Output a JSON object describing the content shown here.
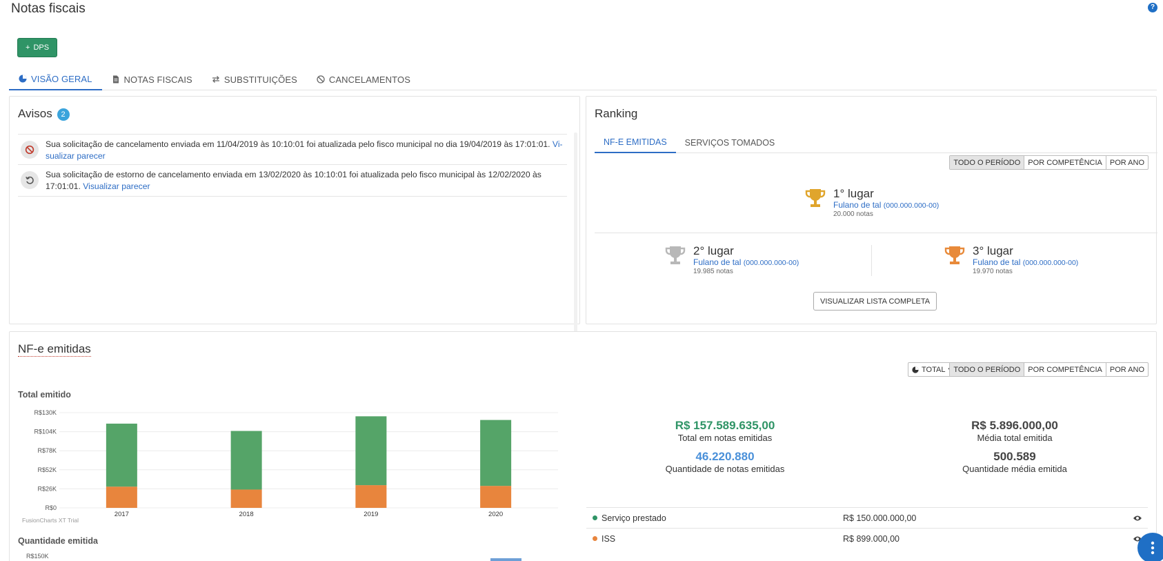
{
  "page": {
    "title": "Notas fiscais",
    "help": "?"
  },
  "actions": {
    "dps_label": "DPS"
  },
  "tabs": [
    {
      "label": "VISÃO GERAL"
    },
    {
      "label": "NOTAS FISCAIS"
    },
    {
      "label": "SUBSTITUIÇÕES"
    },
    {
      "label": "CANCELAMENTOS"
    }
  ],
  "avisos": {
    "title": "Avisos",
    "count": "2",
    "items": [
      {
        "text": "Sua solicitação de cancelamento enviada em 11/04/2019 às 10:10:01 foi atualizada pelo fisco municipal no dia 19/04/2019 às 17:01:01. ",
        "link": "Vi-sualizar parecer"
      },
      {
        "text": "Sua solicitação de estorno de cancelamento enviada em 13/02/2020 às 10:10:01 foi atualizada pelo fisco municipal às 12/02/2020 às 17:01:01. ",
        "link": "Visualizar parecer"
      }
    ]
  },
  "ranking": {
    "title": "Ranking",
    "tabs": [
      "NF-E EMITIDAS",
      "SERVIÇOS TOMADOS"
    ],
    "periods": [
      "TODO O PERÍODO",
      "POR COMPETÊNCIA",
      "POR ANO"
    ],
    "first": {
      "place": "1° lugar",
      "name": "Fulano de tal",
      "doc": "(000.000.000-00)",
      "count": "20.000 notas",
      "color": "#e0a52c"
    },
    "second": {
      "place": "2° lugar",
      "name": "Fulano de tal",
      "doc": "(000.000.000-00)",
      "count": "19.985 notas",
      "color": "#b8b8b8"
    },
    "third": {
      "place": "3° lugar",
      "name": "Fulano de tal",
      "doc": "(000.000.000-00)",
      "count": "19.970 notas",
      "color": "#e88a3a"
    },
    "full_list_label": "VISUALIZAR LISTA COMPLETA"
  },
  "nfe": {
    "title": "NF-e emitidas",
    "total_dropdown": "TOTAL",
    "periods": [
      "TODO O PERÍODO",
      "POR COMPETÊNCIA",
      "POR ANO"
    ],
    "stats": {
      "total_value": "R$ 157.589.635,00",
      "total_label": "Total em notas emitidas",
      "media_value": "R$ 5.896.000,00",
      "media_label": "Média total emitida",
      "qtd_value": "46.220.880",
      "qtd_label": "Quantidade de notas emitidas",
      "qtd_media_value": "500.589",
      "qtd_media_label": "Quantidade média emitida"
    },
    "legend": [
      {
        "label": "Serviço prestado",
        "value": "R$ 150.000.000,00",
        "color": "#2f9466"
      },
      {
        "label": "ISS",
        "value": "R$ 899.000,00",
        "color": "#e8853d"
      }
    ],
    "chart_footer": "FusionCharts XT Trial",
    "chart2_title": "Quantidade emitida",
    "chart2_first_tick": "$150K"
  },
  "chart_data": {
    "type": "bar",
    "title": "Total emitido",
    "categories": [
      "2017",
      "2018",
      "2019",
      "2020"
    ],
    "series": [
      {
        "name": "ISS",
        "values": [
          29000,
          25000,
          31000,
          30000
        ],
        "color": "#e8853d"
      },
      {
        "name": "Serviço prestado",
        "values": [
          86000,
          80000,
          94000,
          90000
        ],
        "color": "#55a468"
      }
    ],
    "stacked": true,
    "ylim": [
      0,
      130000
    ],
    "yticks": [
      "R$0",
      "R$26K",
      "R$52K",
      "R$78K",
      "R$104K",
      "R$130K"
    ]
  }
}
